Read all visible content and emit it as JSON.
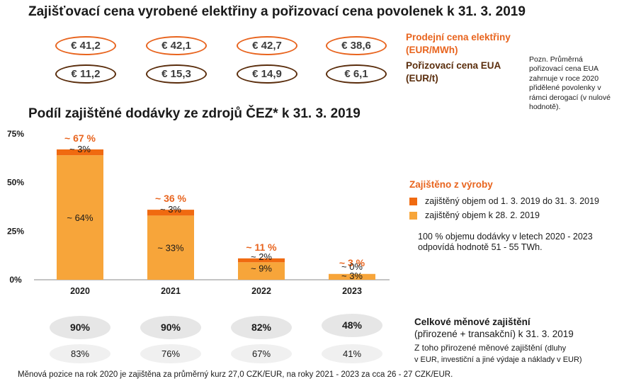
{
  "header": {
    "title": "Zajišťovací cena vyrobené elektřiny a pořizovací cena povolenek k 31. 3. 2019",
    "chart_title": "Podíl zajištěné dodávky ze zdrojů ČEZ* k 31. 3. 2019"
  },
  "prices": {
    "selling": [
      "€ 41,2",
      "€ 42,1",
      "€ 42,7",
      "€ 38,6"
    ],
    "eua": [
      "€ 11,2",
      "€ 15,3",
      "€ 14,9",
      "€ 6,1"
    ],
    "selling_label_1": "Prodejní cena elektřiny",
    "selling_label_2": "(EUR/MWh)",
    "eua_label_1": "Pořizovací cena EUA",
    "eua_label_2": "(EUR/t)",
    "note": "Pozn. Průměrná pořizovací cena EUA zahrnuje v roce 2020 přidělené povolenky v rámci derogací (v nulové hodnotě)."
  },
  "legend": {
    "title": "Zajištěno z výroby",
    "item1": "zajištěný objem od 1. 3. 2019 do 31. 3. 2019",
    "item2": "zajištěný objem k 28. 2. 2019",
    "text": "100 % objemu dodávky v letech 2020 - 2023 odpovídá hodnotě 51 - 55 TWh."
  },
  "colors": {
    "accent": "#e8641e",
    "dark_orange": "#f06a10",
    "light_orange": "#f7a53a",
    "brown": "#5a2d0c"
  },
  "chart_data": {
    "type": "bar",
    "stacked": true,
    "categories": [
      "2020",
      "2021",
      "2022",
      "2023"
    ],
    "series": [
      {
        "name": "zajištěný objem k 28. 2. 2019",
        "values": [
          64,
          33,
          9,
          3
        ],
        "labels": [
          "~ 64%",
          "~ 33%",
          "~ 9%",
          "~ 3%"
        ],
        "color": "#f7a53a"
      },
      {
        "name": "zajištěný objem od 1. 3. 2019 do 31. 3. 2019",
        "values": [
          3,
          3,
          2,
          0
        ],
        "labels": [
          "~ 3%",
          "~ 3%",
          "~ 2%",
          "~ 0%"
        ],
        "color": "#f06a10"
      }
    ],
    "totals": [
      67,
      36,
      11,
      3
    ],
    "total_labels": [
      "~ 67 %",
      "~ 36 %",
      "~ 11 %",
      "~ 3 %"
    ],
    "yticks": [
      "0%",
      "25%",
      "50%",
      "75%"
    ],
    "ytick_values": [
      0,
      25,
      50,
      75
    ],
    "ylim": [
      0,
      75
    ],
    "grid": false
  },
  "summary": {
    "title": "Celkové měnové zajištění",
    "subtitle": "(přirozené + transakční) k 31. 3. 2019",
    "natural_1": "Z toho přirozené měnové zajištění",
    "natural_1b": "(dluhy",
    "natural_2": "v EUR, investiční a jiné výdaje a náklady v EUR)",
    "total": [
      "90%",
      "90%",
      "82%",
      "48%"
    ],
    "natural": [
      "83%",
      "76%",
      "67%",
      "41%"
    ]
  },
  "footer": "Měnová pozice na rok 2020 je zajištěna za průměrný kurz 27,0 CZK/EUR, na roky 2021 - 2023 za cca 26 - 27 CZK/EUR."
}
